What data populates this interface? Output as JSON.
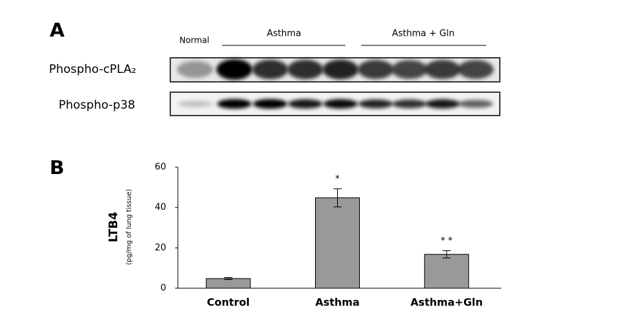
{
  "panel_a": {
    "label": "A",
    "lanes": {
      "normal": "Normal",
      "group1": "Asthma",
      "group2": "Asthma + Gln"
    },
    "rows": [
      "Phospho-cPLA₂",
      "Phospho-p38"
    ]
  },
  "chart_data": {
    "type": "bar",
    "label": "B",
    "ylabel": "LTB4",
    "ylabel_sub": "(pg/mg of lung tissue)",
    "categories": [
      "Control",
      "Asthma",
      "Asthma+Gln"
    ],
    "values": [
      4.8,
      44.8,
      16.8
    ],
    "errors": [
      0.5,
      4.5,
      1.8
    ],
    "markers": [
      null,
      "*",
      "* *"
    ],
    "color": "#999999",
    "ylim": [
      0,
      60
    ],
    "yticks": [
      0,
      20,
      40,
      60
    ],
    "grid": false
  }
}
